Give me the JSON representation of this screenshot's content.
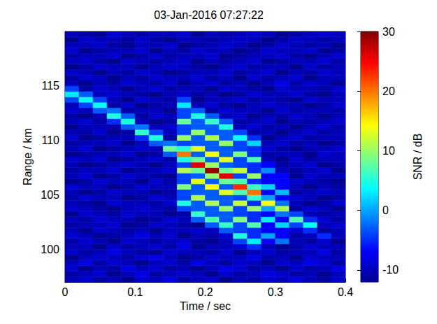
{
  "chart_data": {
    "type": "heatmap",
    "title": "03-Jan-2016 07:27:22",
    "x_label": "Time / sec",
    "y_label": "Range / km",
    "colorbar_label": "SNR / dB",
    "xlim": [
      0,
      0.4
    ],
    "xticks": [
      0,
      0.1,
      0.2,
      0.3,
      0.4
    ],
    "ylim": [
      97,
      120
    ],
    "yticks": [
      100,
      105,
      110,
      115
    ],
    "clim": [
      -12,
      30
    ],
    "cticks": [
      -10,
      0,
      10,
      20,
      30
    ],
    "x": [
      0.01,
      0.03,
      0.05,
      0.07,
      0.09,
      0.11,
      0.13,
      0.15,
      0.17,
      0.19,
      0.21,
      0.23,
      0.25,
      0.27,
      0.29,
      0.31,
      0.33,
      0.35,
      0.37,
      0.39
    ],
    "y": [
      97.25,
      97.75,
      98.25,
      98.75,
      99.25,
      99.75,
      100.25,
      100.75,
      101.25,
      101.75,
      102.25,
      102.75,
      103.25,
      103.75,
      104.25,
      104.75,
      105.25,
      105.75,
      106.25,
      106.75,
      107.25,
      107.75,
      108.25,
      108.75,
      109.25,
      109.75,
      110.25,
      110.75,
      111.25,
      111.75,
      112.25,
      112.75,
      113.25,
      113.75,
      114.25,
      114.75,
      115.25,
      115.75,
      116.25,
      116.75,
      117.25,
      117.75,
      118.25,
      118.75,
      119.25,
      119.75
    ],
    "z": [
      [
        -10,
        -9,
        -11,
        -10,
        -12,
        -9,
        -10,
        -8,
        -11,
        -10,
        -9,
        -12,
        -10,
        -11,
        -9,
        -10,
        -8,
        -10,
        -11,
        -9
      ],
      [
        -11,
        -10,
        -9,
        -12,
        -10,
        -8,
        -11,
        -10,
        -9,
        -10,
        -12,
        -9,
        -11,
        -10,
        -8,
        -9,
        -11,
        -10,
        -12,
        -10
      ],
      [
        -9,
        -12,
        -10,
        -11,
        -8,
        -10,
        -9,
        -11,
        -10,
        -12,
        -10,
        -8,
        -9,
        -11,
        -10,
        -12,
        -9,
        -11,
        -10,
        -8
      ],
      [
        -10,
        -8,
        -11,
        -9,
        -10,
        -12,
        -10,
        -9,
        -11,
        -8,
        -10,
        -11,
        -9,
        -10,
        -12,
        -9,
        -10,
        -8,
        -9,
        -11
      ],
      [
        -12,
        -10,
        -9,
        -10,
        -11,
        -9,
        -8,
        -10,
        -12,
        -11,
        -9,
        -10,
        -10,
        -8,
        -11,
        -10,
        -12,
        -9,
        -10,
        -10
      ],
      [
        -9,
        -11,
        -10,
        -8,
        -10,
        -11,
        -12,
        -9,
        -10,
        -10,
        -11,
        -9,
        -12,
        -10,
        -9,
        -11,
        -10,
        -10,
        -8,
        -11
      ],
      [
        -10,
        -10,
        -12,
        -9,
        -11,
        -10,
        -9,
        -11,
        -8,
        -12,
        -10,
        -10,
        -9,
        -5,
        -10,
        -12,
        -11,
        -9,
        -10,
        -10
      ],
      [
        -11,
        -9,
        -10,
        -12,
        -9,
        -10,
        -11,
        -10,
        -9,
        -11,
        -12,
        -10,
        -4,
        3,
        -7,
        -2,
        -10,
        -11,
        -9,
        -12
      ],
      [
        -9,
        -10,
        -12,
        -11,
        -10,
        -8,
        -10,
        -9,
        -12,
        -10,
        -11,
        -9,
        5,
        -5,
        0,
        -7,
        -11,
        -10,
        -5,
        -10
      ],
      [
        -10,
        -12,
        -9,
        -10,
        -11,
        -10,
        -12,
        -10,
        -10,
        -9,
        -10,
        -3,
        -4,
        -5,
        -7,
        -7,
        -9,
        -5,
        -11,
        -10
      ],
      [
        -11,
        -10,
        -10,
        -9,
        -12,
        -11,
        -9,
        -10,
        -11,
        -12,
        -3,
        6,
        -4,
        7,
        -7,
        2,
        -4,
        4,
        -10,
        -9
      ],
      [
        -10,
        -11,
        -9,
        -10,
        -10,
        -12,
        -11,
        -9,
        -10,
        -3,
        7,
        -3,
        9,
        -5,
        3,
        -7,
        7,
        -5,
        -9,
        -11
      ],
      [
        -12,
        -9,
        -10,
        -11,
        -9,
        -10,
        -10,
        -12,
        -11,
        6,
        -3,
        -3,
        -4,
        -5,
        -7,
        -2,
        -4,
        -10,
        -11,
        -10
      ],
      [
        -9,
        -10,
        -11,
        -12,
        -10,
        -9,
        -10,
        -11,
        -4,
        -3,
        -3,
        10,
        -4,
        10,
        0,
        11,
        -11,
        -9,
        -10,
        -12
      ],
      [
        -10,
        -11,
        -12,
        -9,
        -10,
        -10,
        -11,
        -9,
        5,
        -3,
        11,
        -3,
        12,
        -5,
        14,
        -2,
        -10,
        -12,
        -11,
        -9
      ],
      [
        -11,
        -9,
        -10,
        -10,
        -12,
        -11,
        -9,
        -10,
        -4,
        11,
        -3,
        -3,
        -4,
        6,
        0,
        -7,
        -9,
        -10,
        -12,
        -11
      ],
      [
        -10,
        -12,
        -11,
        -9,
        -10,
        -10,
        -12,
        -11,
        -4,
        -3,
        -3,
        13,
        7,
        20,
        -7,
        1,
        -11,
        -10,
        -9,
        -10
      ],
      [
        -9,
        -10,
        -10,
        -12,
        -11,
        -9,
        -10,
        -10,
        9,
        -3,
        14,
        -3,
        23,
        6,
        2,
        -7,
        -10,
        -12,
        -10,
        -11
      ],
      [
        -12,
        -11,
        -9,
        -10,
        -10,
        -12,
        -9,
        -11,
        -4,
        13,
        -3,
        8,
        7,
        -5,
        -7,
        -7,
        -9,
        -10,
        -11,
        -12
      ],
      [
        -10,
        -9,
        -12,
        -11,
        -9,
        -10,
        -11,
        -12,
        -4,
        -3,
        10,
        26,
        -4,
        10,
        -7,
        -7,
        -12,
        -9,
        -10,
        -10
      ],
      [
        -11,
        -10,
        -10,
        -9,
        -12,
        -11,
        -10,
        -9,
        11,
        8,
        29,
        8,
        12,
        -5,
        -1,
        -10,
        -11,
        -10,
        -9,
        -12
      ],
      [
        -10,
        -12,
        -11,
        -10,
        -9,
        -10,
        -12,
        -10,
        -4,
        26,
        10,
        -3,
        -4,
        -5,
        -7,
        -11,
        -10,
        -9,
        -12,
        -11
      ],
      [
        -9,
        -10,
        -9,
        -12,
        -11,
        -10,
        -9,
        -11,
        5,
        8,
        -3,
        13,
        -4,
        7,
        -10,
        -12,
        -9,
        -11,
        -10,
        -10
      ],
      [
        -12,
        -11,
        -10,
        -10,
        -9,
        -12,
        -11,
        -3,
        20,
        -3,
        14,
        -3,
        9,
        -5,
        -11,
        -10,
        -10,
        -12,
        -9,
        -10
      ],
      [
        -10,
        -9,
        -12,
        -11,
        -10,
        -9,
        -10,
        8,
        5,
        13,
        -3,
        -3,
        -4,
        -5,
        -9,
        -11,
        -12,
        -10,
        -10,
        -9
      ],
      [
        -11,
        -10,
        -10,
        -9,
        -12,
        -10,
        -3,
        -2,
        -4,
        -3,
        -3,
        10,
        -4,
        2,
        -10,
        -9,
        -11,
        -10,
        -12,
        -11
      ],
      [
        -9,
        -12,
        -11,
        -10,
        -10,
        -5,
        5,
        -11,
        10,
        -3,
        11,
        -3,
        4,
        -5,
        -12,
        -10,
        -9,
        -11,
        -10,
        -10
      ],
      [
        -10,
        -11,
        -9,
        -12,
        -11,
        6,
        -4,
        -10,
        -4,
        10,
        -3,
        -3,
        -4,
        -11,
        -10,
        -12,
        -10,
        -9,
        -11,
        -10
      ],
      [
        -12,
        -10,
        -10,
        -11,
        -3,
        -2,
        -10,
        -9,
        -4,
        -3,
        -3,
        5,
        -10,
        -9,
        -11,
        -10,
        -12,
        -10,
        -9,
        -11
      ],
      [
        -10,
        -9,
        -11,
        -5,
        5,
        -10,
        -12,
        -11,
        8,
        -3,
        6,
        -3,
        -11,
        -10,
        -9,
        -12,
        -10,
        -11,
        -10,
        -9
      ],
      [
        -11,
        -12,
        -10,
        5,
        -3,
        -11,
        -9,
        -10,
        -4,
        5,
        -3,
        -10,
        -9,
        -12,
        -10,
        -11,
        -9,
        -10,
        -12,
        -10
      ],
      [
        -9,
        -10,
        -3,
        -2,
        -11,
        -10,
        -10,
        -12,
        -4,
        -3,
        -11,
        -9,
        -10,
        -10,
        -12,
        -9,
        -11,
        -10,
        -10,
        -11
      ],
      [
        -10,
        -4,
        4,
        -11,
        -9,
        -12,
        -11,
        -10,
        3,
        -10,
        -9,
        -11,
        -12,
        -10,
        -9,
        -10,
        -10,
        -12,
        -11,
        -9
      ],
      [
        -4,
        4,
        -4,
        -10,
        -12,
        -9,
        -10,
        -11,
        -4,
        -12,
        -10,
        -10,
        -9,
        -11,
        -10,
        -11,
        -12,
        -9,
        -10,
        -10
      ],
      [
        3,
        -3,
        -10,
        -9,
        -10,
        -11,
        -12,
        -10,
        -9,
        -11,
        -10,
        -12,
        -11,
        -9,
        -10,
        -10,
        -9,
        -11,
        -12,
        -10
      ],
      [
        -4,
        -11,
        -9,
        -10,
        -12,
        -10,
        -9,
        -11,
        -10,
        -10,
        -12,
        -9,
        -10,
        -11,
        -12,
        -9,
        -10,
        -10,
        -11,
        -9
      ],
      [
        -10,
        -12,
        -10,
        -11,
        -9,
        -10,
        -11,
        -9,
        -12,
        -10,
        -9,
        -11,
        -10,
        -12,
        -10,
        -8,
        -11,
        -9,
        -10,
        -12
      ],
      [
        -11,
        -9,
        -10,
        -12,
        -10,
        -11,
        -9,
        -10,
        -10,
        -9,
        -11,
        -10,
        -12,
        -9,
        -11,
        -10,
        -9,
        -12,
        -10,
        -10
      ],
      [
        -9,
        -10,
        -12,
        -10,
        -11,
        -9,
        -10,
        -12,
        -11,
        -10,
        -10,
        -9,
        -11,
        -10,
        -9,
        -12,
        -10,
        -11,
        -9,
        -10
      ],
      [
        -12,
        -11,
        -9,
        -10,
        -10,
        -12,
        -10,
        -9,
        -10,
        -11,
        -12,
        -10,
        -9,
        -11,
        -10,
        -10,
        -12,
        -9,
        -11,
        -10
      ],
      [
        -10,
        -9,
        -11,
        -12,
        -9,
        -10,
        -11,
        -10,
        -9,
        -12,
        -10,
        -11,
        -10,
        -9,
        -12,
        -11,
        -10,
        -10,
        -9,
        -11
      ],
      [
        -11,
        -10,
        -10,
        -9,
        -12,
        -11,
        -9,
        -11,
        -10,
        -10,
        -9,
        -12,
        -11,
        -10,
        -10,
        -9,
        -11,
        -12,
        -10,
        -9
      ],
      [
        -9,
        -12,
        -11,
        -10,
        -10,
        -9,
        -12,
        -10,
        -11,
        -9,
        -10,
        -10,
        -12,
        -11,
        -9,
        -10,
        -10,
        -9,
        -12,
        -11
      ],
      [
        -10,
        -10,
        -9,
        -11,
        -12,
        -10,
        -10,
        -9,
        -12,
        -11,
        -10,
        -9,
        -10,
        -12,
        -11,
        -9,
        -10,
        -11,
        -10,
        -12
      ],
      [
        -12,
        -9,
        -10,
        -10,
        -11,
        -9,
        -11,
        -12,
        -10,
        -10,
        -11,
        -10,
        -9,
        -10,
        -12,
        -11,
        -9,
        -10,
        -11,
        -10
      ],
      [
        -10,
        -11,
        -12,
        -9,
        -10,
        -11,
        -10,
        -10,
        -9,
        -12,
        -10,
        -11,
        -10,
        -9,
        -10,
        -12,
        -11,
        -10,
        -9,
        -10
      ]
    ]
  }
}
